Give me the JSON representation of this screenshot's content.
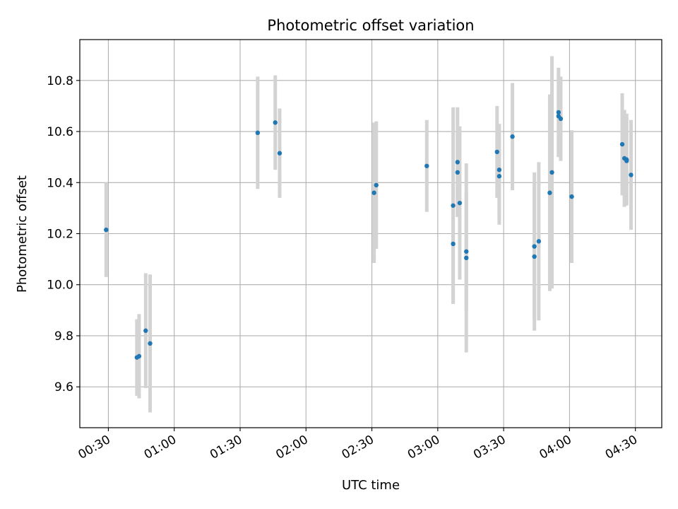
{
  "chart_data": {
    "type": "scatter",
    "title": "Photometric offset variation",
    "xlabel": "UTC time",
    "ylabel": "Photometric offset",
    "x_unit": "HH:MM UTC",
    "xlim": [
      "00:17",
      "04:42"
    ],
    "ylim": [
      9.44,
      10.96
    ],
    "x_ticks": [
      "00:30",
      "01:00",
      "01:30",
      "02:00",
      "02:30",
      "03:00",
      "03:30",
      "04:00",
      "04:30"
    ],
    "y_ticks": [
      9.6,
      9.8,
      10.0,
      10.2,
      10.4,
      10.6,
      10.8
    ],
    "grid": true,
    "colors": {
      "point": "#1f77b4",
      "errorbar": "#d3d3d3",
      "grid": "#b0b0b0"
    },
    "series": [
      {
        "points": [
          {
            "x": "00:29",
            "y": 10.215,
            "err": 0.185
          },
          {
            "x": "00:43",
            "y": 9.715,
            "err": 0.15
          },
          {
            "x": "00:44",
            "y": 9.72,
            "err": 0.165
          },
          {
            "x": "00:47",
            "y": 9.82,
            "err": 0.225
          },
          {
            "x": "00:49",
            "y": 9.77,
            "err": 0.27
          },
          {
            "x": "01:38",
            "y": 10.595,
            "err": 0.22
          },
          {
            "x": "01:46",
            "y": 10.635,
            "err": 0.185
          },
          {
            "x": "01:48",
            "y": 10.515,
            "err": 0.175
          },
          {
            "x": "02:31",
            "y": 10.36,
            "err": 0.275
          },
          {
            "x": "02:32",
            "y": 10.39,
            "err": 0.25
          },
          {
            "x": "02:55",
            "y": 10.465,
            "err": 0.18
          },
          {
            "x": "03:07",
            "y": 10.31,
            "err": 0.385
          },
          {
            "x": "03:07",
            "y": 10.16,
            "err": 0.235
          },
          {
            "x": "03:09",
            "y": 10.48,
            "err": 0.215
          },
          {
            "x": "03:09",
            "y": 10.44,
            "err": 0.175
          },
          {
            "x": "03:10",
            "y": 10.32,
            "err": 0.3
          },
          {
            "x": "03:13",
            "y": 10.105,
            "err": 0.37
          },
          {
            "x": "03:13",
            "y": 10.13,
            "err": 0.23
          },
          {
            "x": "03:27",
            "y": 10.52,
            "err": 0.18
          },
          {
            "x": "03:28",
            "y": 10.45,
            "err": 0.18
          },
          {
            "x": "03:28",
            "y": 10.425,
            "err": 0.19
          },
          {
            "x": "03:34",
            "y": 10.58,
            "err": 0.21
          },
          {
            "x": "03:44",
            "y": 10.15,
            "err": 0.29
          },
          {
            "x": "03:44",
            "y": 10.11,
            "err": 0.29
          },
          {
            "x": "03:46",
            "y": 10.17,
            "err": 0.31
          },
          {
            "x": "03:51",
            "y": 10.36,
            "err": 0.385
          },
          {
            "x": "03:52",
            "y": 10.44,
            "err": 0.455
          },
          {
            "x": "03:55",
            "y": 10.675,
            "err": 0.175
          },
          {
            "x": "03:55",
            "y": 10.66,
            "err": 0.16
          },
          {
            "x": "03:56",
            "y": 10.65,
            "err": 0.165
          },
          {
            "x": "04:01",
            "y": 10.345,
            "err": 0.26
          },
          {
            "x": "04:24",
            "y": 10.55,
            "err": 0.2
          },
          {
            "x": "04:25",
            "y": 10.495,
            "err": 0.19
          },
          {
            "x": "04:26",
            "y": 10.49,
            "err": 0.18
          },
          {
            "x": "04:26",
            "y": 10.485,
            "err": 0.17
          },
          {
            "x": "04:28",
            "y": 10.43,
            "err": 0.215
          }
        ]
      }
    ]
  }
}
